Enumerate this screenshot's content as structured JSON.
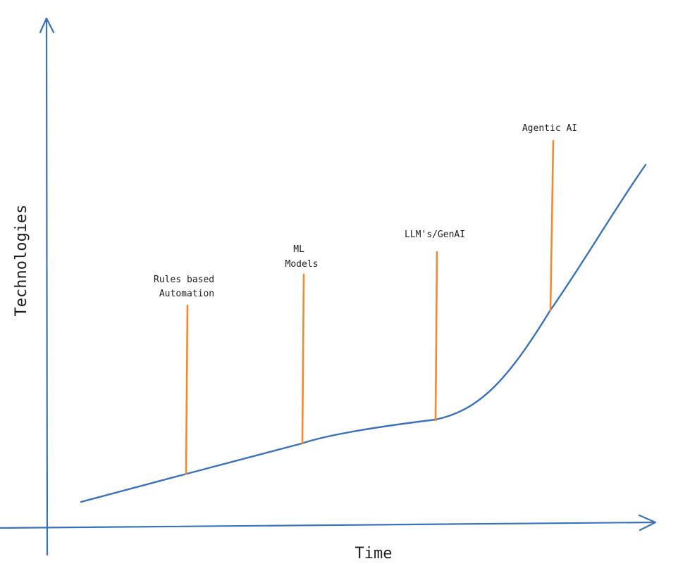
{
  "axes": {
    "x_label": "Time",
    "y_label": "Technologies"
  },
  "milestones": [
    {
      "id": "rules-based-automation",
      "lines": [
        "Rules based",
        "Automation"
      ]
    },
    {
      "id": "ml-models",
      "lines": [
        "ML",
        "Models"
      ]
    },
    {
      "id": "llms-genai",
      "lines": [
        "LLM's/GenAI"
      ]
    },
    {
      "id": "agentic-ai",
      "lines": [
        "Agentic AI"
      ]
    }
  ],
  "colors": {
    "axis": "#3a72bd",
    "curve": "#3a72bd",
    "marker": "#f08a32",
    "text": "#1e1e1e"
  }
}
